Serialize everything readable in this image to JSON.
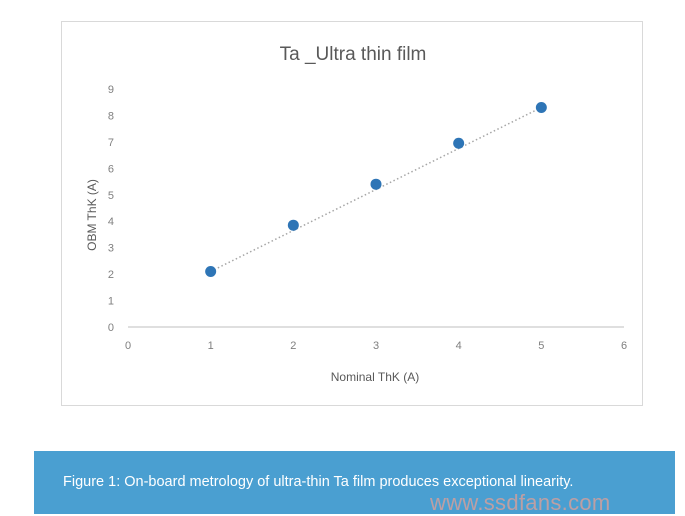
{
  "chart_data": {
    "type": "scatter",
    "title": "Ta _Ultra thin film",
    "xlabel": "Nominal ThK (A)",
    "ylabel": "OBM ThK (A)",
    "xlim": [
      0,
      6
    ],
    "ylim": [
      0,
      9
    ],
    "x_ticks": [
      "0",
      "1",
      "2",
      "3",
      "4",
      "5",
      "6"
    ],
    "y_ticks": [
      "0",
      "1",
      "2",
      "3",
      "4",
      "5",
      "6",
      "7",
      "8",
      "9"
    ],
    "series": [
      {
        "x": [
          1,
          2,
          3,
          4,
          5
        ],
        "y": [
          2.1,
          3.85,
          5.4,
          6.95,
          8.3
        ],
        "color": "#2e75b6"
      }
    ],
    "trendline": {
      "type": "linear",
      "style": "dotted",
      "color": "#a6a6a6",
      "x": [
        1,
        5
      ],
      "y": [
        2.1,
        8.3
      ]
    },
    "grid": false,
    "legend": "none"
  },
  "caption": {
    "text": "Figure 1: On-board metrology of ultra-thin Ta film produces exceptional linearity.",
    "background": "#4a9fd1"
  },
  "watermark": {
    "text": "www.ssdfans.com"
  }
}
